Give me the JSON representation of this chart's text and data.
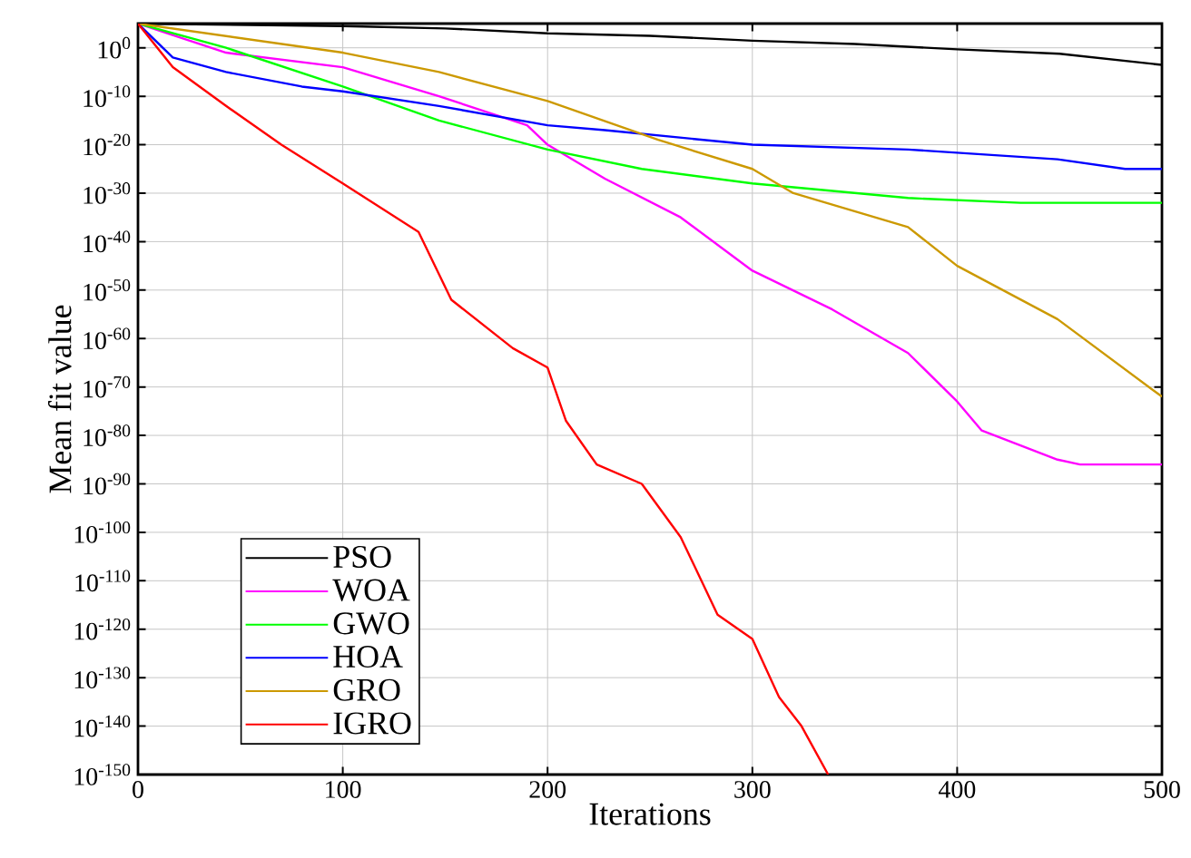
{
  "chart_data": {
    "type": "line",
    "xlabel": "Iterations",
    "ylabel": "Mean fit value",
    "log": "y",
    "grid": true,
    "legend": "bottom left",
    "marker": "none",
    "line_style": "solid",
    "xlim": [
      0,
      500
    ],
    "xticks": [
      0,
      100,
      200,
      300,
      400,
      500
    ],
    "ylim": [
      1e-150,
      100000.0
    ],
    "yticks": [
      {
        "value": 1e-150,
        "label": "10$^{-150}$"
      },
      {
        "value": 1e-140,
        "label": "10$^{-140}$"
      },
      {
        "value": 1e-130,
        "label": "10$^{-130}$"
      },
      {
        "value": 1e-120,
        "label": "10$^{-120}$"
      },
      {
        "value": 1e-110,
        "label": "10$^{-110}$"
      },
      {
        "value": 1e-100,
        "label": "10$^{-100}$"
      },
      {
        "value": 1e-90,
        "label": "10$^{-90}$"
      },
      {
        "value": 1e-80,
        "label": "10$^{-80}$"
      },
      {
        "value": 1e-70,
        "label": "10$^{-70}$"
      },
      {
        "value": 1e-60,
        "label": "10$^{-60}$"
      },
      {
        "value": 1e-50,
        "label": "10$^{-50}$"
      },
      {
        "value": 1e-40,
        "label": "10$^{-40}$"
      },
      {
        "value": 1e-30,
        "label": "10$^{-30}$"
      },
      {
        "value": 1e-20,
        "label": "10$^{-20}$"
      },
      {
        "value": 1e-10,
        "label": "10$^{-10}$"
      },
      {
        "value": 1,
        "label": "10$^{0}$"
      }
    ],
    "series": [
      {
        "name": "PSO",
        "color": "#000000",
        "x": [
          0,
          100,
          150,
          200,
          250,
          300,
          350,
          400,
          450,
          500
        ],
        "values": [
          100000.0,
          30000.0,
          10000.0,
          1000.0,
          300.0,
          30.0,
          6,
          0.5,
          0.06,
          0.0003
        ]
      },
      {
        "name": "WOA",
        "color": "#ff00ff",
        "x": [
          0,
          43,
          100,
          147,
          190,
          200,
          228,
          265,
          300,
          339,
          376,
          400,
          412,
          449,
          460,
          500
        ],
        "values": [
          100000.0,
          0.1,
          0.0001,
          1e-10,
          1e-16,
          1e-20,
          1e-27,
          1e-35,
          1e-46,
          1e-54,
          1e-63,
          1e-73,
          1e-79,
          1e-85,
          1e-86,
          1e-86
        ]
      },
      {
        "name": "GWO",
        "color": "#00ff00",
        "x": [
          0,
          43,
          100,
          147,
          200,
          246,
          300,
          376,
          431,
          500
        ],
        "values": [
          100000.0,
          1,
          1e-08,
          1e-15,
          1e-21,
          1e-25,
          1e-28,
          1e-31,
          1e-32,
          1e-32
        ]
      },
      {
        "name": "HOA",
        "color": "#0000ff",
        "x": [
          0,
          17,
          43,
          80,
          100,
          147,
          200,
          228,
          300,
          376,
          449,
          482,
          500
        ],
        "values": [
          100000.0,
          0.01,
          1e-05,
          1e-08,
          1e-09,
          1e-12,
          1e-16,
          1e-17,
          1e-20,
          1e-21,
          1e-23,
          1e-25,
          1e-25
        ]
      },
      {
        "name": "GRO",
        "color": "#cc9900",
        "x": [
          0,
          100,
          147,
          200,
          254,
          300,
          320,
          376,
          400,
          449,
          500
        ],
        "values": [
          100000.0,
          0.1,
          1e-05,
          1e-11,
          1e-19,
          1e-25,
          1e-30,
          1e-37,
          1e-45,
          1e-56,
          1e-72
        ]
      },
      {
        "name": "IGRO",
        "color": "#ff0000",
        "x": [
          0,
          17,
          43,
          70,
          100,
          137,
          153,
          183,
          200,
          209,
          224,
          246,
          265,
          283,
          300,
          313,
          324,
          337
        ],
        "values": [
          100000.0,
          0.0001,
          1e-12,
          1e-20,
          1e-28,
          1e-38,
          1e-52,
          1e-62,
          1e-66,
          1e-77,
          1e-86,
          1e-90,
          1e-101,
          1e-117,
          1e-122,
          1e-134,
          1e-140,
          1e-150
        ]
      }
    ]
  }
}
